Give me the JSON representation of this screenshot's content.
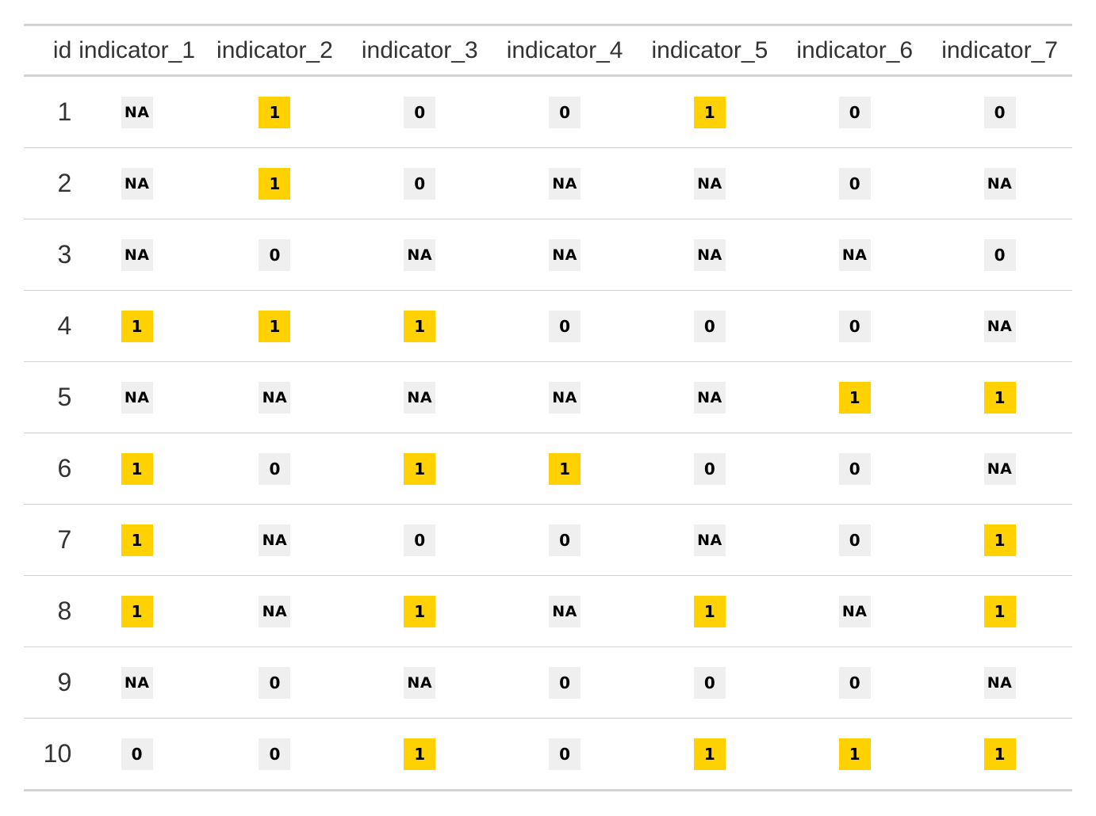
{
  "colors": {
    "highlight": "#FFD100",
    "neutral": "#EFEFEF",
    "rule": "#D3D3D3"
  },
  "table": {
    "columns": [
      "id",
      "indicator_1",
      "indicator_2",
      "indicator_3",
      "indicator_4",
      "indicator_5",
      "indicator_6",
      "indicator_7"
    ],
    "rows": [
      {
        "id": "1",
        "values": [
          "NA",
          "1",
          "0",
          "0",
          "1",
          "0",
          "0"
        ]
      },
      {
        "id": "2",
        "values": [
          "NA",
          "1",
          "0",
          "NA",
          "NA",
          "0",
          "NA"
        ]
      },
      {
        "id": "3",
        "values": [
          "NA",
          "0",
          "NA",
          "NA",
          "NA",
          "NA",
          "0"
        ]
      },
      {
        "id": "4",
        "values": [
          "1",
          "1",
          "1",
          "0",
          "0",
          "0",
          "NA"
        ]
      },
      {
        "id": "5",
        "values": [
          "NA",
          "NA",
          "NA",
          "NA",
          "NA",
          "1",
          "1"
        ]
      },
      {
        "id": "6",
        "values": [
          "1",
          "0",
          "1",
          "1",
          "0",
          "0",
          "NA"
        ]
      },
      {
        "id": "7",
        "values": [
          "1",
          "NA",
          "0",
          "0",
          "NA",
          "0",
          "1"
        ]
      },
      {
        "id": "8",
        "values": [
          "1",
          "NA",
          "1",
          "NA",
          "1",
          "NA",
          "1"
        ]
      },
      {
        "id": "9",
        "values": [
          "NA",
          "0",
          "NA",
          "0",
          "0",
          "0",
          "NA"
        ]
      },
      {
        "id": "10",
        "values": [
          "0",
          "0",
          "1",
          "0",
          "1",
          "1",
          "1"
        ]
      }
    ]
  }
}
